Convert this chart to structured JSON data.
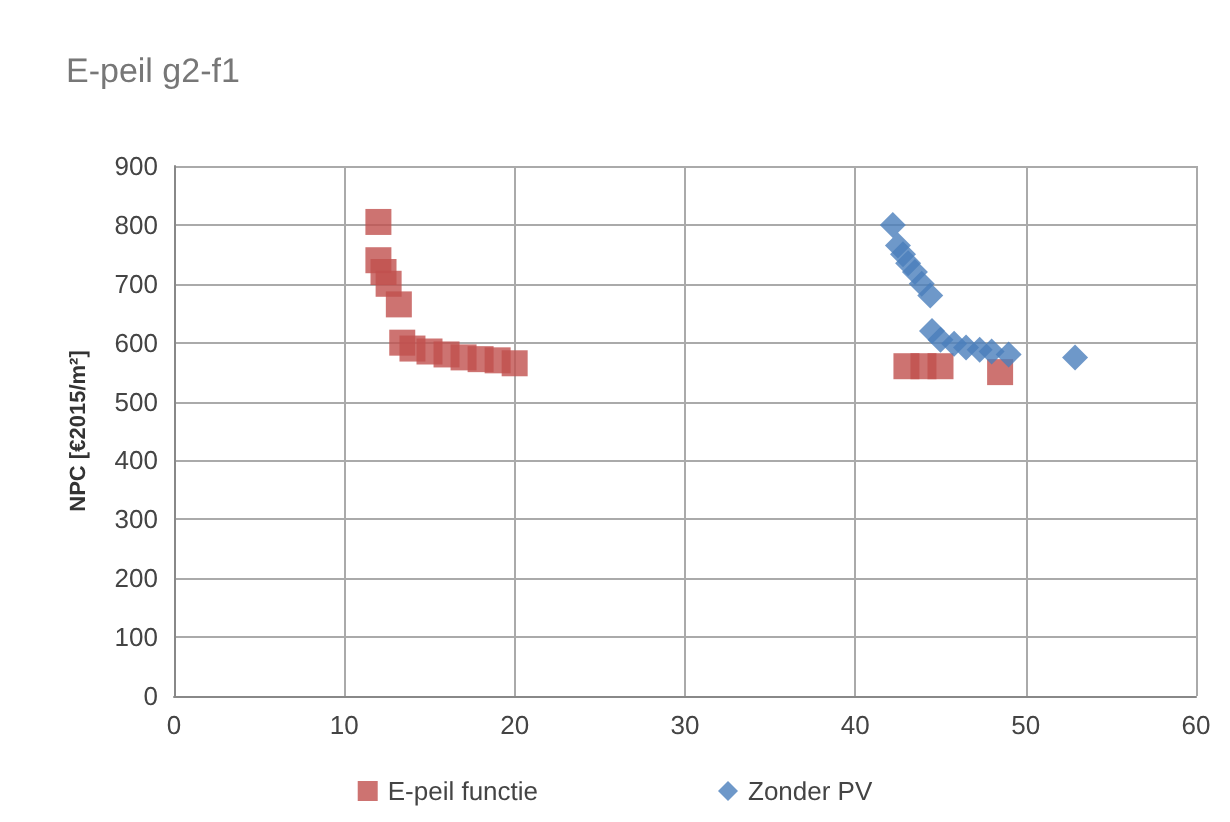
{
  "chart_data": {
    "type": "scatter",
    "title": "E-peil g2-f1",
    "ylabel": "NPC [€2015/m²]",
    "xlim": [
      0,
      60
    ],
    "xticks": [
      0,
      10,
      20,
      30,
      40,
      50,
      60
    ],
    "ylim": [
      0,
      900
    ],
    "yticks": [
      0,
      100,
      200,
      300,
      400,
      500,
      600,
      700,
      800,
      900
    ],
    "grid": true,
    "legend": "bottom",
    "series": [
      {
        "name": "E-peil functie",
        "color": "#c0504d",
        "marker": "square",
        "x": [
          12,
          12,
          12.3,
          12.6,
          13.2,
          13.4,
          14,
          15,
          16,
          17,
          18,
          19,
          20,
          43,
          44,
          45,
          48.5
        ],
        "values": [
          805,
          740,
          720,
          700,
          665,
          600,
          590,
          585,
          580,
          575,
          572,
          570,
          565,
          560,
          560,
          560,
          550
        ]
      },
      {
        "name": "Zonder PV",
        "color": "#4a7ebb",
        "marker": "diamond",
        "x": [
          42.2,
          42.5,
          42.8,
          43.1,
          43.5,
          43.9,
          44.4,
          44.5,
          45,
          45.8,
          46.5,
          47.3,
          48,
          49,
          52.9
        ],
        "values": [
          800,
          765,
          750,
          735,
          720,
          700,
          680,
          620,
          605,
          598,
          592,
          588,
          585,
          580,
          575
        ]
      }
    ]
  }
}
